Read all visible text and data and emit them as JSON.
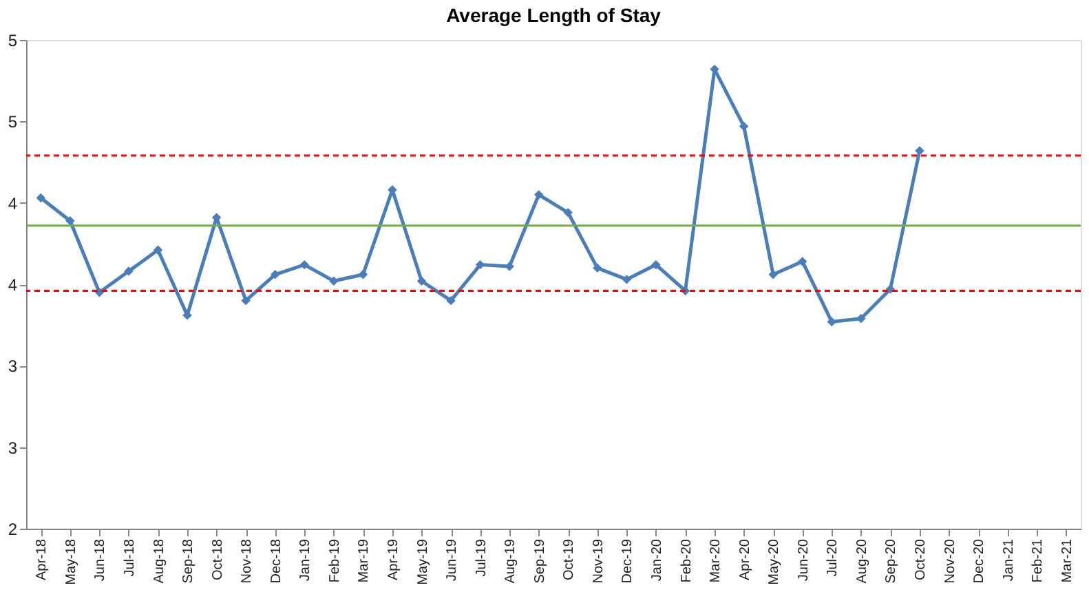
{
  "chart_data": {
    "type": "line",
    "title": "Average Length of Stay",
    "categories": [
      "Apr-18",
      "May-18",
      "Jun-18",
      "Jul-18",
      "Aug-18",
      "Sep-18",
      "Oct-18",
      "Nov-18",
      "Dec-18",
      "Jan-19",
      "Feb-19",
      "Mar-19",
      "Apr-19",
      "May-19",
      "Jun-19",
      "Jul-19",
      "Aug-19",
      "Sep-19",
      "Oct-19",
      "Nov-19",
      "Dec-19",
      "Jan-20",
      "Feb-20",
      "Mar-20",
      "Apr-20",
      "May-20",
      "Jun-20",
      "Jul-20",
      "Aug-20",
      "Sep-20",
      "Oct-20",
      "Nov-20",
      "Dec-20",
      "Jan-21",
      "Feb-21",
      "Mar-21"
    ],
    "series": [
      {
        "color": "#4a7ebb",
        "values": [
          4.03,
          3.89,
          3.45,
          3.58,
          3.71,
          3.31,
          3.91,
          3.4,
          3.56,
          3.62,
          3.52,
          3.56,
          4.08,
          3.52,
          3.4,
          3.62,
          3.61,
          4.05,
          3.94,
          3.6,
          3.53,
          3.62,
          3.46,
          4.82,
          4.47,
          3.56,
          3.64,
          3.27,
          3.29,
          3.47,
          4.32,
          null,
          null,
          null,
          null,
          null
        ]
      }
    ],
    "ylim": [
      2,
      5
    ],
    "yticks": [
      2,
      {
        "value": 2.5,
        "label": "3"
      },
      3,
      {
        "value": 3.5,
        "label": "4"
      },
      4,
      {
        "value": 4.5,
        "label": "5"
      },
      5
    ],
    "ref_lines": [
      {
        "axis": "y",
        "value": 4.29,
        "color": "#ff0000",
        "line_style": "dashed"
      },
      {
        "axis": "y",
        "value": 3.86,
        "color": "#70ad47",
        "line_style": "solid"
      },
      {
        "axis": "y",
        "value": 3.46,
        "color": "#ff0000",
        "line_style": "dashed"
      }
    ],
    "marker": "diamond",
    "line_style": "solid",
    "grid": false
  }
}
